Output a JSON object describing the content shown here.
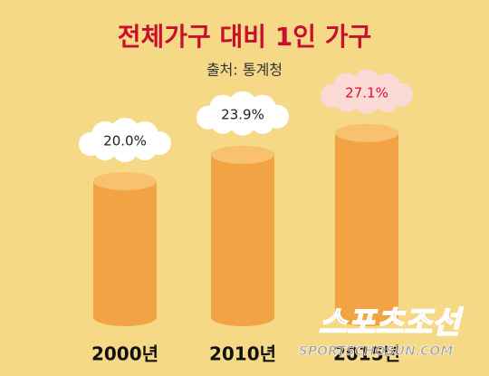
{
  "chart_data": {
    "type": "bar",
    "title": "전체가구 대비 1인 가구",
    "subtitle": "출처: 통계청",
    "categories": [
      "2000년",
      "2010년",
      "2015년"
    ],
    "values": [
      20.0,
      23.9,
      27.1
    ],
    "value_labels": [
      "20.0%",
      "23.9%",
      "27.1%"
    ],
    "color": "#f2a444",
    "value_label_colors": [
      "#222222",
      "#222222",
      "#d3142f"
    ],
    "cloud_colors": [
      "#ffffff",
      "#ffffff",
      "#fbd9d6"
    ],
    "watermark": "스포츠조선",
    "watermark_url": "SPORTSCHOSUN.COM"
  }
}
